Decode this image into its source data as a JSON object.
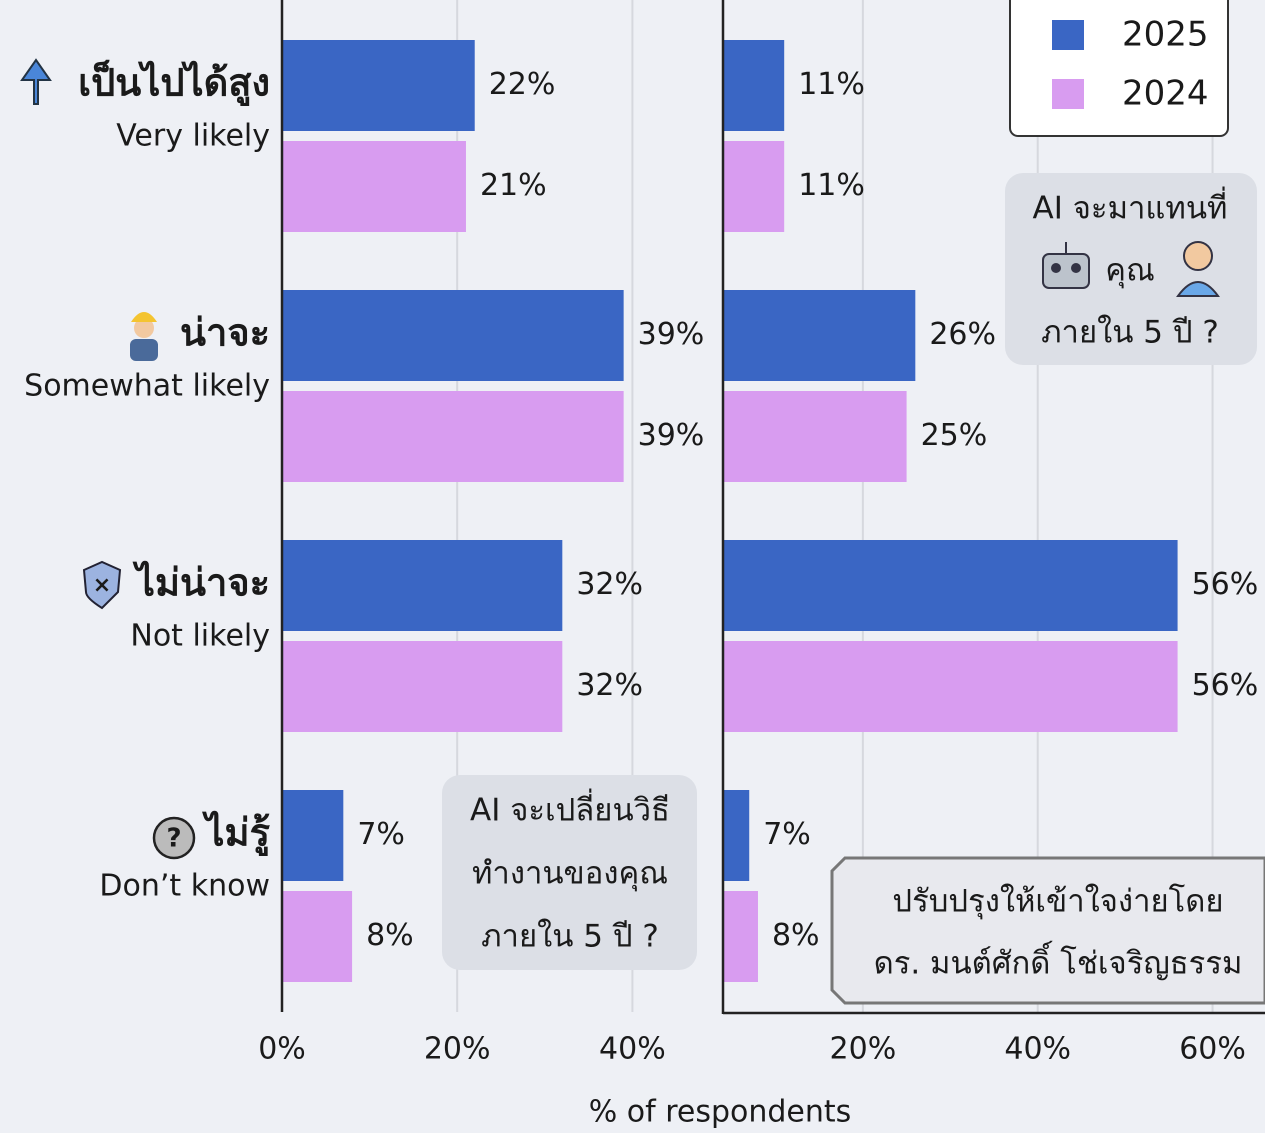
{
  "chart_data": [
    {
      "type": "barh",
      "categories": [
        "เป็นไปได้สูง",
        "น่าจะ",
        "ไม่น่าจะ",
        "ไม่รู้"
      ],
      "categories_en": [
        "Very likely",
        "Somewhat likely",
        "Not likely",
        "Don’t know"
      ],
      "series": [
        {
          "color": "#3a66c4",
          "values": [
            22,
            39,
            32,
            7
          ],
          "value_labels": [
            "22%",
            "39%",
            "32%",
            "7%"
          ]
        },
        {
          "color": "#d89cf0",
          "values": [
            21,
            39,
            32,
            8
          ],
          "value_labels": [
            "21%",
            "39%",
            "32%",
            "8%"
          ]
        }
      ],
      "xlim": [
        0,
        50
      ],
      "xticks": [
        {
          "value": 0,
          "label": "0%"
        },
        {
          "value": 20,
          "label": "20%"
        },
        {
          "value": 40,
          "label": "40%"
        }
      ],
      "xlabel": "% of respondents",
      "annotation": [
        "AI จะเปลี่ยนวิธี",
        "ทำงานของคุณ",
        "ภายใน 5 ปี ?"
      ],
      "grid": true
    },
    {
      "type": "barh",
      "series": [
        {
          "name": "2025",
          "color": "#3a66c4",
          "values": [
            11,
            26,
            56,
            7
          ],
          "value_labels": [
            "11%",
            "26%",
            "56%",
            "7%"
          ]
        },
        {
          "name": "2024",
          "color": "#d89cf0",
          "values": [
            11,
            25,
            56,
            8
          ],
          "value_labels": [
            "11%",
            "25%",
            "56%",
            "8%"
          ]
        }
      ],
      "xlim": [
        4,
        66
      ],
      "xticks": [
        {
          "value": 20,
          "label": "20%"
        },
        {
          "value": 40,
          "label": "40%"
        },
        {
          "value": 60,
          "label": "60%"
        }
      ],
      "annotation": [
        "AI จะมาแทนที่",
        "คุณ",
        "ภายใน 5 ปี ?"
      ],
      "credit": [
        "ปรับปรุงให้เข้าใจง่ายโดย",
        "ดร. มนต์ศักดิ์ โช่เจริญธรรม"
      ],
      "legend": "upper right",
      "grid": true
    }
  ]
}
